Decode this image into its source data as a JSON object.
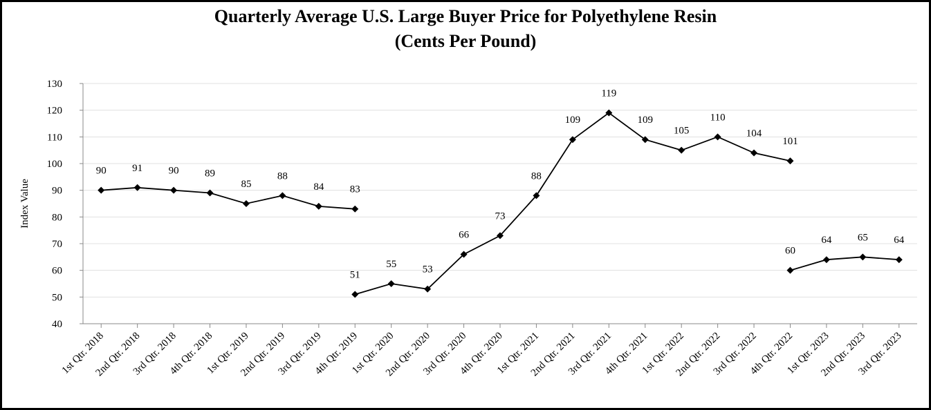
{
  "chart_data": {
    "type": "line",
    "title": "Quarterly Average U.S. Large Buyer Price for Polyethylene Resin",
    "subtitle": "(Cents Per Pound)",
    "y_label": "Index Value",
    "categories": [
      "1st Qtr. 2018",
      "2nd Qtr. 2018",
      "3rd Qtr. 2018",
      "4th Qtr. 2018",
      "1st Qtr. 2019",
      "2nd Qtr. 2019",
      "3rd Qtr. 2019",
      "4th Qtr. 2019",
      "1st Qtr. 2020",
      "2nd Qtr. 2020",
      "3rd Qtr. 2020",
      "4th Qtr. 2020",
      "1st Qtr. 2021",
      "2nd Qtr. 2021",
      "3rd Qtr. 2021",
      "4th Qtr. 2021",
      "1st Qtr. 2022",
      "2nd Qtr. 2022",
      "3rd Qtr. 2022",
      "4th Qtr. 2022",
      "1st Qtr. 2023",
      "2nd Qtr. 2023",
      "3rd Qtr. 2023"
    ],
    "series": [
      {
        "color": "#000000",
        "values": [
          90,
          91,
          90,
          89,
          85,
          88,
          84,
          83,
          null,
          null,
          null,
          null,
          null,
          null,
          null,
          null,
          null,
          null,
          null,
          null,
          null,
          null,
          null
        ]
      },
      {
        "color": "#000000",
        "values": [
          null,
          null,
          null,
          null,
          null,
          null,
          null,
          51,
          55,
          53,
          66,
          73,
          88,
          109,
          119,
          109,
          105,
          110,
          104,
          101,
          null,
          null,
          null
        ]
      },
      {
        "color": "#000000",
        "values": [
          null,
          null,
          null,
          null,
          null,
          null,
          null,
          null,
          null,
          null,
          null,
          null,
          null,
          null,
          null,
          null,
          null,
          null,
          null,
          60,
          64,
          65,
          64
        ]
      }
    ],
    "ylim": [
      40,
      130
    ],
    "yticks": [
      40,
      50,
      60,
      70,
      80,
      90,
      100,
      110,
      120,
      130
    ],
    "grid": true
  }
}
